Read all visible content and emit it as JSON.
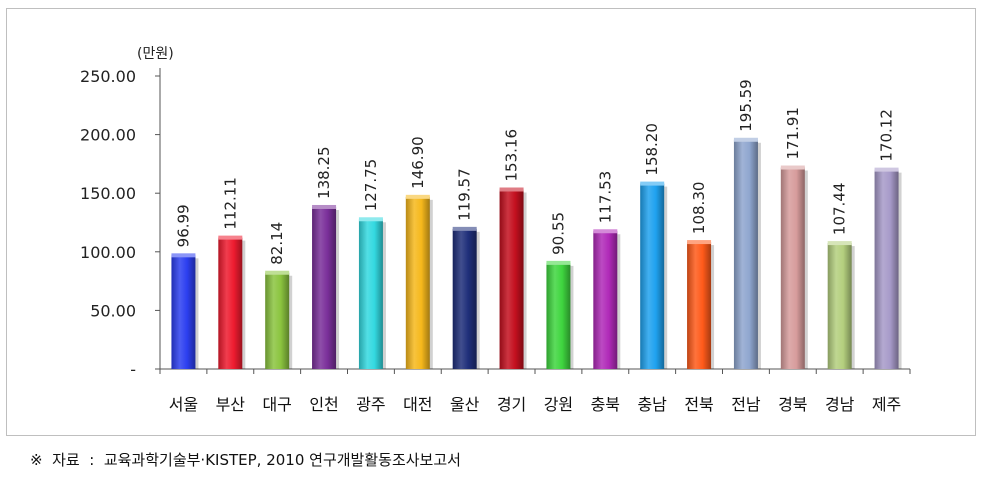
{
  "chart_data": {
    "type": "bar",
    "unit_label": "(만원)",
    "categories": [
      "서울",
      "부산",
      "대구",
      "인천",
      "광주",
      "대전",
      "울산",
      "경기",
      "강원",
      "충북",
      "충남",
      "전북",
      "전남",
      "경북",
      "경남",
      "제주"
    ],
    "values": [
      96.99,
      112.11,
      82.14,
      138.25,
      127.75,
      146.9,
      119.57,
      153.16,
      90.55,
      117.53,
      158.2,
      108.3,
      195.59,
      171.91,
      107.44,
      170.12
    ],
    "value_labels": [
      "96.99",
      "112.11",
      "82.14",
      "138.25",
      "127.75",
      "146.90",
      "119.57",
      "153.16",
      "90.55",
      "117.53",
      "158.20",
      "108.30",
      "195.59",
      "171.91",
      "107.44",
      "170.12"
    ],
    "bar_colors": [
      "#2c3ff0",
      "#ee1b2f",
      "#8bc43f",
      "#7a2f9a",
      "#33d9e0",
      "#f6b81c",
      "#1f2f7a",
      "#c4101f",
      "#3fd63f",
      "#b02ab8",
      "#1fa2ef",
      "#ff5a1a",
      "#8fa6cf",
      "#d79c9c",
      "#b4cf7e",
      "#a79ac9"
    ],
    "y_ticks": [
      "-",
      "50.00",
      "100.00",
      "150.00",
      "200.00",
      "250.00"
    ],
    "ylim": [
      0,
      250
    ],
    "grid": false,
    "legend": false
  },
  "footer": {
    "source": "※  자료  :  교육과학기술부·KISTEP, 2010 연구개발활동조사보고서"
  }
}
